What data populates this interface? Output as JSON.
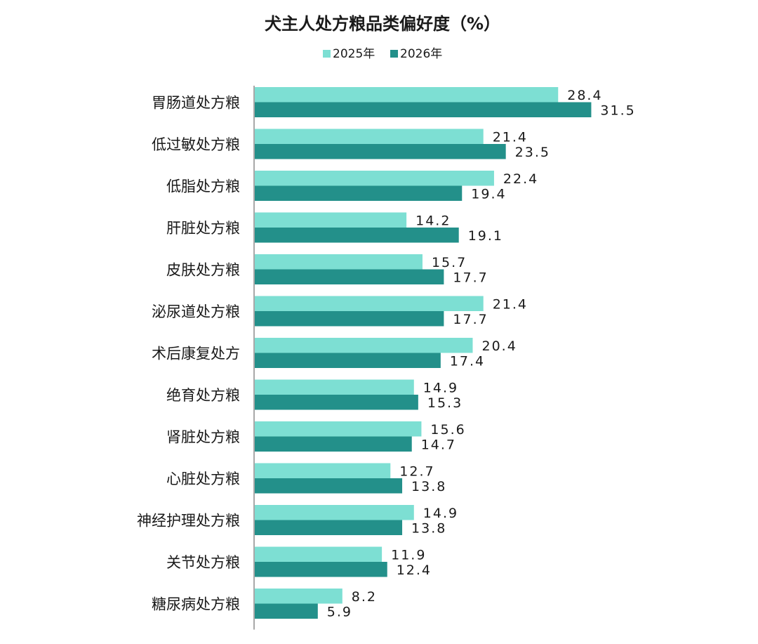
{
  "chart_data": {
    "type": "bar",
    "orientation": "horizontal",
    "title": "犬主人处方粮品类偏好度（%）",
    "xlabel": "",
    "ylabel": "",
    "xlim": [
      0,
      33
    ],
    "grid": false,
    "legend_position": "top-center",
    "colors": {
      "2025年": "#7ddfd3",
      "2026年": "#23908a"
    },
    "categories": [
      "胃肠道处方粮",
      "低过敏处方粮",
      "低脂处方粮",
      "肝脏处方粮",
      "皮肤处方粮",
      "泌尿道处方粮",
      "术后康复处方",
      "绝育处方粮",
      "肾脏处方粮",
      "心脏处方粮",
      "神经护理处方粮",
      "关节处方粮",
      "糖尿病处方粮"
    ],
    "series": [
      {
        "name": "2025年",
        "values": [
          28.4,
          21.4,
          22.4,
          14.2,
          15.7,
          21.4,
          20.4,
          14.9,
          15.6,
          12.7,
          14.9,
          11.9,
          8.2
        ],
        "labels": [
          "28.4",
          "21.4",
          "22.4",
          "14.2",
          "15.7",
          "21.4",
          "20.4",
          "14.9",
          "15.6",
          "12.7",
          "14.9",
          "11.9",
          "8.2"
        ]
      },
      {
        "name": "2026年",
        "values": [
          31.5,
          23.5,
          19.4,
          19.1,
          17.7,
          17.7,
          17.4,
          15.3,
          14.7,
          13.8,
          13.8,
          12.4,
          5.9
        ],
        "labels": [
          "31.5",
          "23.5",
          "19.4",
          "19.1",
          "17.7",
          "17.7",
          "17.4",
          "15.3",
          "14.7",
          "13.8",
          "13.8",
          "12.4",
          "5.9"
        ]
      }
    ]
  }
}
